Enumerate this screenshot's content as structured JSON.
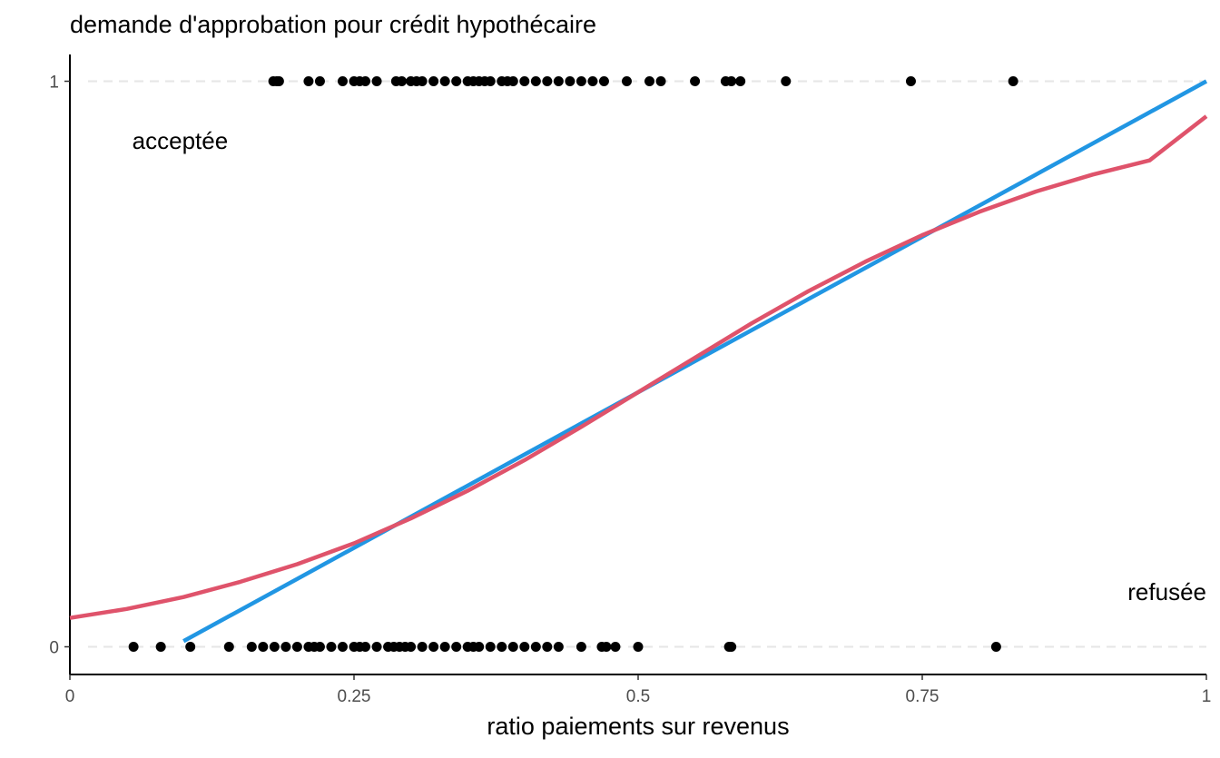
{
  "chart_data": {
    "type": "scatter",
    "title": "demande d'approbation pour crédit hypothécaire",
    "xlabel": "ratio paiements sur revenus",
    "ylabel": "",
    "xlim": [
      0,
      1
    ],
    "ylim": [
      -0.05,
      1.04
    ],
    "xticks": [
      0,
      0.25,
      0.5,
      0.75,
      1
    ],
    "xtick_labels": [
      "0",
      "0.25",
      "0.5",
      "0.75",
      "1"
    ],
    "yticks": [
      0,
      1
    ],
    "ytick_labels": [
      "0",
      "1"
    ],
    "grid": "dashed horizontal lines at y=0 and y=1",
    "annotations": [
      {
        "text": "acceptée",
        "x": 0.097,
        "y": 0.895
      },
      {
        "text": "refusée",
        "x": 1.0,
        "y": 0.097
      }
    ],
    "series": [
      {
        "kind": "points",
        "color": "#000000",
        "points_y1": [
          0.179,
          0.182,
          0.184,
          0.21,
          0.22,
          0.24,
          0.25,
          0.255,
          0.26,
          0.27,
          0.287,
          0.292,
          0.3,
          0.305,
          0.31,
          0.32,
          0.33,
          0.34,
          0.35,
          0.355,
          0.36,
          0.365,
          0.37,
          0.38,
          0.385,
          0.39,
          0.4,
          0.41,
          0.42,
          0.43,
          0.44,
          0.45,
          0.46,
          0.47,
          0.49,
          0.51,
          0.52,
          0.55,
          0.577,
          0.582,
          0.59,
          0.63,
          0.74,
          0.83
        ],
        "points_y0": [
          0.056,
          0.08,
          0.106,
          0.14,
          0.16,
          0.17,
          0.18,
          0.19,
          0.2,
          0.21,
          0.215,
          0.22,
          0.23,
          0.24,
          0.25,
          0.255,
          0.26,
          0.27,
          0.28,
          0.285,
          0.29,
          0.295,
          0.3,
          0.31,
          0.32,
          0.33,
          0.34,
          0.35,
          0.355,
          0.36,
          0.37,
          0.38,
          0.39,
          0.4,
          0.41,
          0.42,
          0.43,
          0.45,
          0.468,
          0.472,
          0.48,
          0.5,
          0.58,
          0.582,
          0.815
        ]
      },
      {
        "kind": "line",
        "color": "#2196E3",
        "x": [
          0.1,
          1.0
        ],
        "y": [
          0.01,
          1.0
        ]
      },
      {
        "kind": "curve",
        "color": "#DF536B",
        "x": [
          0,
          0.05,
          0.1,
          0.15,
          0.2,
          0.25,
          0.3,
          0.35,
          0.4,
          0.45,
          0.5,
          0.55,
          0.6,
          0.65,
          0.7,
          0.75,
          0.8,
          0.85,
          0.9,
          0.95,
          1.0
        ],
        "y": [
          0.051,
          0.067,
          0.088,
          0.115,
          0.146,
          0.183,
          0.227,
          0.276,
          0.33,
          0.389,
          0.45,
          0.511,
          0.572,
          0.629,
          0.681,
          0.728,
          0.769,
          0.805,
          0.835,
          0.86,
          0.938
        ]
      }
    ]
  }
}
